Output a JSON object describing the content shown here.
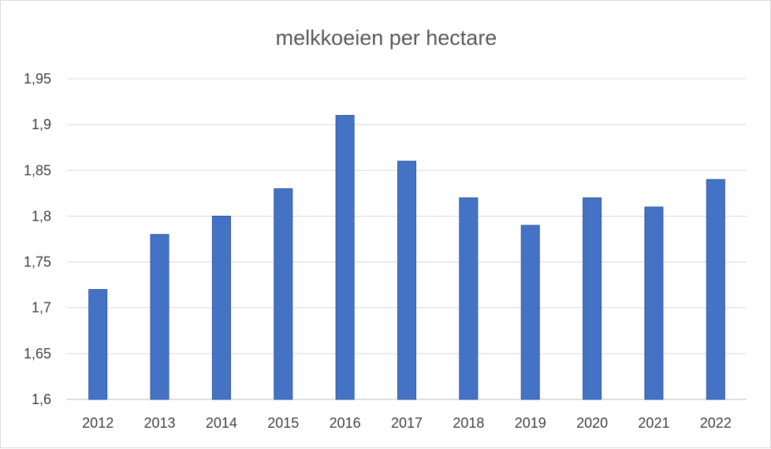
{
  "chart_data": {
    "type": "bar",
    "title": "melkkoeien per hectare",
    "xlabel": "",
    "ylabel": "",
    "categories": [
      "2012",
      "2013",
      "2014",
      "2015",
      "2016",
      "2017",
      "2018",
      "2019",
      "2020",
      "2021",
      "2022"
    ],
    "series": [
      {
        "values": [
          1.72,
          1.78,
          1.8,
          1.83,
          1.91,
          1.86,
          1.82,
          1.79,
          1.82,
          1.81,
          1.84
        ]
      }
    ],
    "ylim": [
      1.6,
      1.95
    ],
    "yticks": [
      1.6,
      1.65,
      1.7,
      1.75,
      1.8,
      1.85,
      1.9,
      1.95
    ],
    "ytick_labels": [
      "1,6",
      "1,65",
      "1,7",
      "1,75",
      "1,8",
      "1,85",
      "1,9",
      "1,95"
    ],
    "grid": true,
    "legend": "none",
    "colors": {
      "bar": "#4472c4",
      "bar_edge": "#2f55a4"
    }
  }
}
